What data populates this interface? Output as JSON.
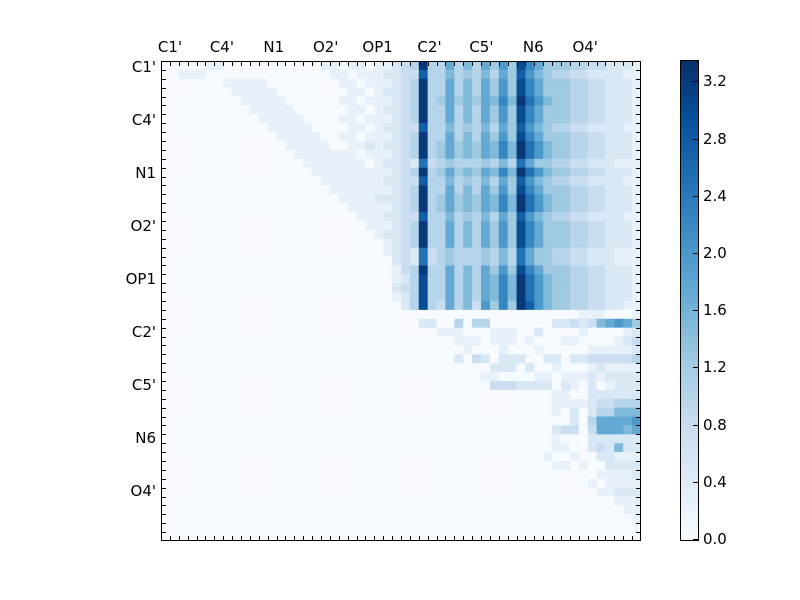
{
  "figure": {
    "background": "#ffffff"
  },
  "chart_data": {
    "type": "heatmap",
    "title": "",
    "description": "Upper-triangular atom-pair heatmap, Blues colormap, dark columns near C2' and N6",
    "x_axis": {
      "side": "top",
      "labels": [
        "C1'",
        "C4'",
        "N1",
        "O2'",
        "OP1",
        "C2'",
        "C5'",
        "N6",
        "O4'"
      ]
    },
    "y_axis": {
      "side": "left",
      "labels": [
        "C1'",
        "C4'",
        "N1",
        "O2'",
        "OP1",
        "C2'",
        "C5'",
        "N6",
        "O4'"
      ]
    },
    "grid_size": 54,
    "value_encoding": {
      "chars": "0123456789abcd",
      "unit": 0.25
    },
    "matrix_rows": [
      "00000110000000000011011011234d4474647585c9755544332221",
      "00111000000000000001101112233b4464546475b8654433222211",
      "00000001111100000000110111234d4474647585c9755544332221",
      "00000000111110000000011012234d4474647585c9755544332221",
      "00000000011111000000110111234d4575657696da865544332221",
      "00000000001111100000011012234d4474647585c9755544332221",
      "00000000000111110000110111234d4474647585c9755544332221",
      "00000000000011111000011012233b4464546475b8654433222211",
      "00000000000001111100110111234d4474647585c9755544332221",
      "00000000000000111110011212234d4575657696da865544332221",
      "00000000000000011111110111234d4575657696da865544332221",
      "00000000000000001111111012232a3454445464a7554433222111",
      "00000000000000000111111111234d4575657696da865544332221",
      "00000000000000000011111112233b4464546475b8654433222211",
      "00000000000000000001111111234d4474647585c9755544332221",
      "00000000000000000000111122234d4575657696da865544332221",
      "00000000000000000000011111234d4575657696da865544332221",
      "00000000000000000000001112233b4464546475b8654433222211",
      "00000000000000000000000111234d4474647585c9755544332221",
      "00000000000000000000000012234d4474647585c9755544332221",
      "00000000000000000000000001234d4474647585c9755544332221",
      "00000000000000000000000001232a3454445464a7554433222111",
      "00000000000000000000000000232a3454445464a7554433222111",
      "00000000000000000000000000134d4474647585c9755544332221",
      "00000000000000000000000000124c4474647696da865544332221",
      "00000000000000000000000000234c4474647696da865544332221",
      "00000000000000000000000000124c4474647696da865544332221",
      "00000000000000000000000000024c4374638595db865544332211",
      "000000000000000000000000000000000000000000000001110001",
      "000000000000000000000000000002200404400000002232367875",
      "000000000000000000000000000000011100011100200001000012",
      "000000000000000000000000000000000111011101000110000123",
      "000000000000000000000000000000000010001000100000111112",
      "000000000000000000000000000000000203202220022022333334",
      "000000000000000000000000000000000000022202001000121111",
      "000000000000000000000000000000000000110000110111212222",
      "000000000000000000000000000000000000033322220210201222",
      "000000000000000000000000000000000000000000001100222222",
      "000000000000000000000000000000000000000000001111233444",
      "000000000000000000000000000000000000000000001020244666",
      "000000000000000000000000000000000000000000000020477778",
      "000000000000000000000000000000000000000000002330377767",
      "000000000000000000000000000000000000000000001000222222",
      "000000000000000000000000000000000000000000001100232622",
      "000000000000000000000000000000000000000000010010022111",
      "000000000000000000000000000000000000000000001101002222",
      "000000000000000000000000000000000000000000000000011112",
      "000000000000000000000000000000000000000000000000101111",
      "000000000000000000000000000000000000000000000000011222",
      "000000000000000000000000000000000000000000000000000111",
      "000000000000000000000000000000000000000000000000000011",
      "000000000000000000000000000000000000000000000000000001",
      "000000000000000000000000000000000000000000000000000000",
      "000000000000000000000000000000000000000000000000000000"
    ],
    "colorbar": {
      "tick_labels": [
        "0.0",
        "0.4",
        "0.8",
        "1.2",
        "1.6",
        "2.0",
        "2.4",
        "2.8",
        "3.2"
      ],
      "vmin": 0.0,
      "vmax": 3.35
    },
    "colormap": {
      "name": "Blues",
      "stops": [
        "#f7fbff",
        "#deebf7",
        "#c6dbef",
        "#9ecae1",
        "#6baed6",
        "#4292c6",
        "#2171b5",
        "#08519c",
        "#08306b"
      ]
    },
    "style": {
      "axis_color": "#000000",
      "tick_length": 4,
      "ticks_per_cell": true
    }
  }
}
